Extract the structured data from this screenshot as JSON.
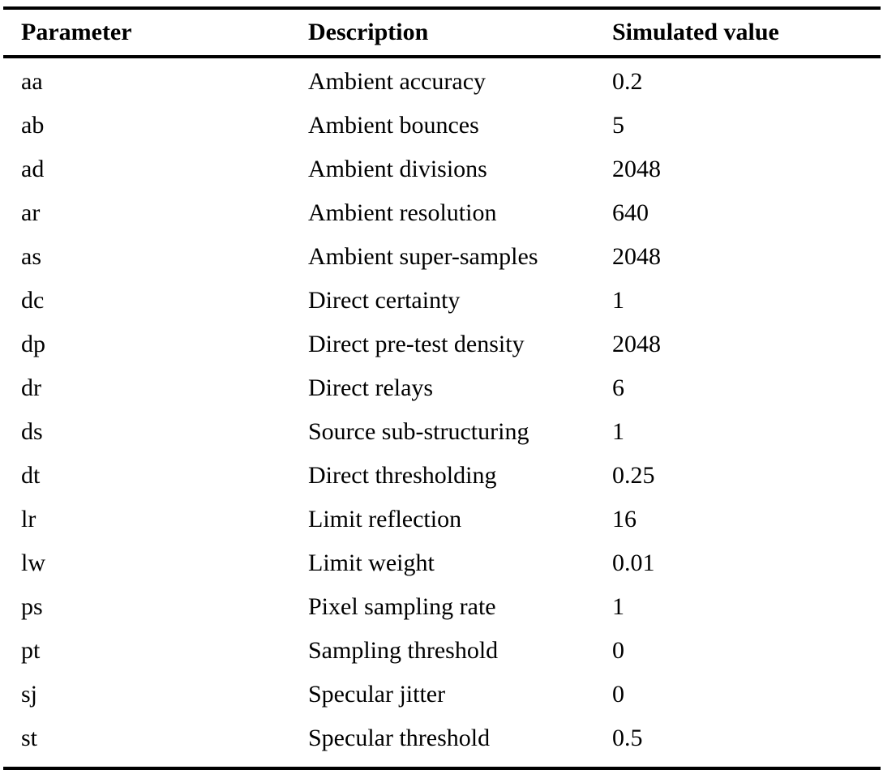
{
  "table": {
    "headers": [
      "Parameter",
      "Description",
      "Simulated value"
    ],
    "rows": [
      [
        "aa",
        "Ambient accuracy",
        "0.2"
      ],
      [
        "ab",
        "Ambient bounces",
        "5"
      ],
      [
        "ad",
        "Ambient divisions",
        "2048"
      ],
      [
        "ar",
        "Ambient resolution",
        "640"
      ],
      [
        "as",
        "Ambient super-samples",
        "2048"
      ],
      [
        "dc",
        "Direct certainty",
        "1"
      ],
      [
        "dp",
        "Direct pre-test density",
        "2048"
      ],
      [
        "dr",
        "Direct relays",
        "6"
      ],
      [
        "ds",
        "Source sub-structuring",
        "1"
      ],
      [
        "dt",
        "Direct thresholding",
        "0.25"
      ],
      [
        "lr",
        "Limit reflection",
        "16"
      ],
      [
        "lw",
        "Limit weight",
        "0.01"
      ],
      [
        "ps",
        "Pixel sampling rate",
        "1"
      ],
      [
        "pt",
        "Sampling threshold",
        "0"
      ],
      [
        "sj",
        "Specular jitter",
        "0"
      ],
      [
        "st",
        "Specular threshold",
        "0.5"
      ]
    ]
  }
}
